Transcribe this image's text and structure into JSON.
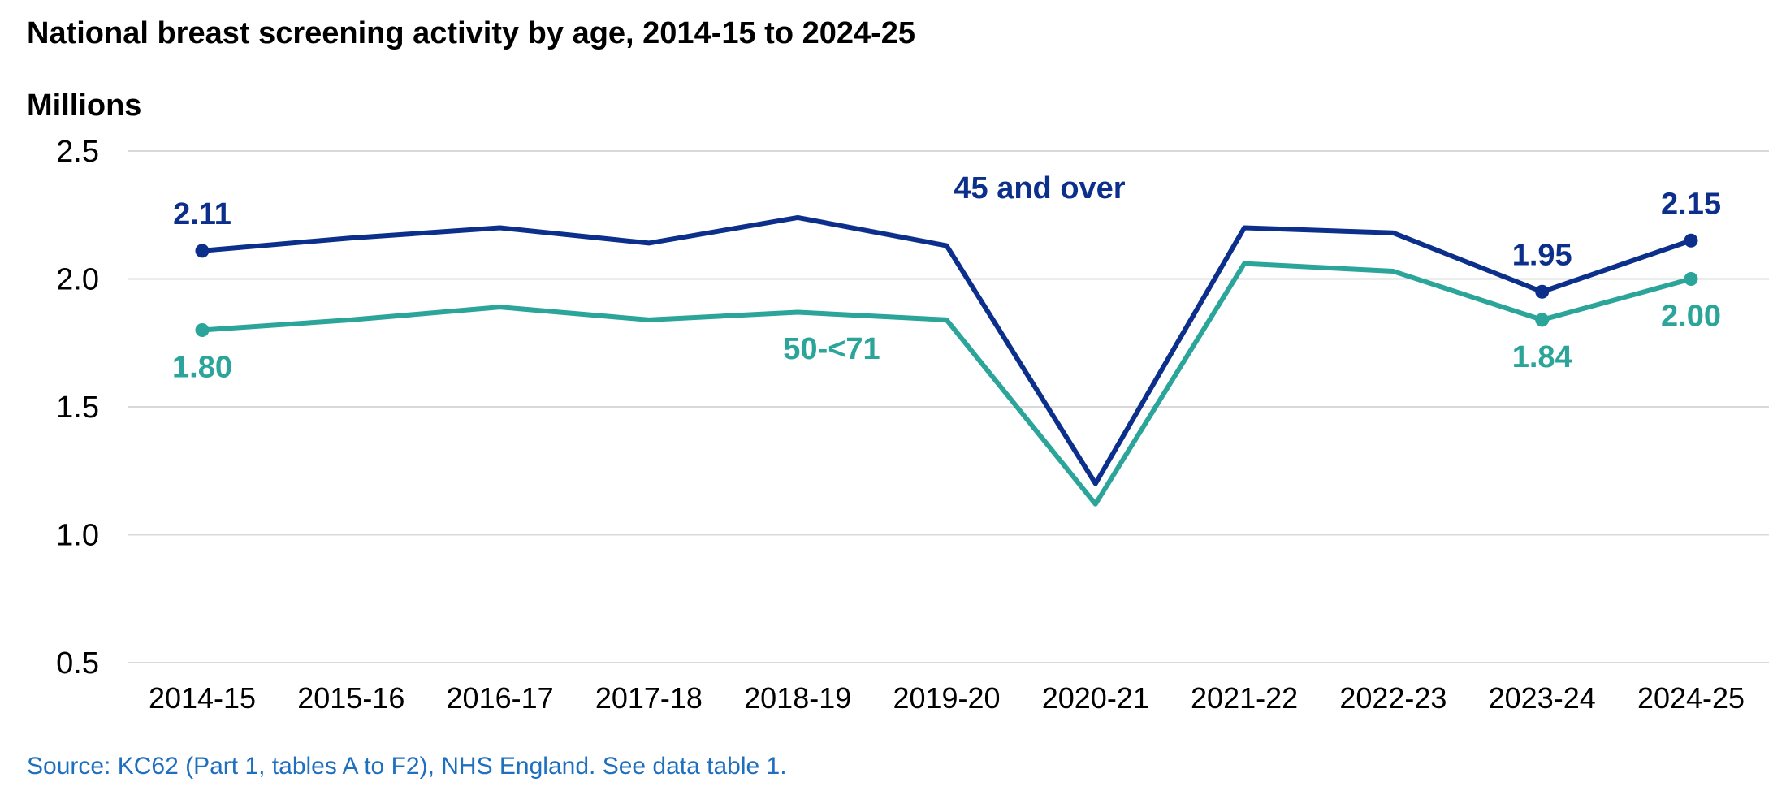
{
  "chart_data": {
    "type": "line",
    "title": "National breast screening activity by age, 2014-15 to 2024-25",
    "ylabel": "Millions",
    "xlabel": "",
    "ylim": [
      0.5,
      2.5
    ],
    "yticks": [
      "0.5",
      "1.0",
      "1.5",
      "2.0",
      "2.5"
    ],
    "ytick_values": [
      0.5,
      1.0,
      1.5,
      2.0,
      2.5
    ],
    "grid": true,
    "categories": [
      "2014-15",
      "2015-16",
      "2016-17",
      "2017-18",
      "2018-19",
      "2019-20",
      "2020-21",
      "2021-22",
      "2022-23",
      "2023-24",
      "2024-25"
    ],
    "series": [
      {
        "name": "45 and over",
        "color": "#0b2f8a",
        "values": [
          2.11,
          2.16,
          2.2,
          2.14,
          2.24,
          2.13,
          1.2,
          2.2,
          2.18,
          1.95,
          2.15
        ],
        "point_labels": {
          "0": "2.11",
          "9": "1.95",
          "10": "2.15"
        },
        "markers_at": [
          0,
          9,
          10
        ]
      },
      {
        "name": "50-<71",
        "color": "#2ba499",
        "values": [
          1.8,
          1.84,
          1.89,
          1.84,
          1.87,
          1.84,
          1.12,
          2.06,
          2.03,
          1.84,
          2.0
        ],
        "point_labels": {
          "0": "1.80",
          "9": "1.84",
          "10": "2.00"
        },
        "markers_at": [
          0,
          9,
          10
        ]
      }
    ],
    "source": "Source: KC62 (Part 1, tables A to F2), NHS England. See data table 1."
  },
  "colors": {
    "title": "#000000",
    "axis_text": "#000000",
    "grid": "#d9d9d9",
    "source": "#1f6fbf"
  }
}
